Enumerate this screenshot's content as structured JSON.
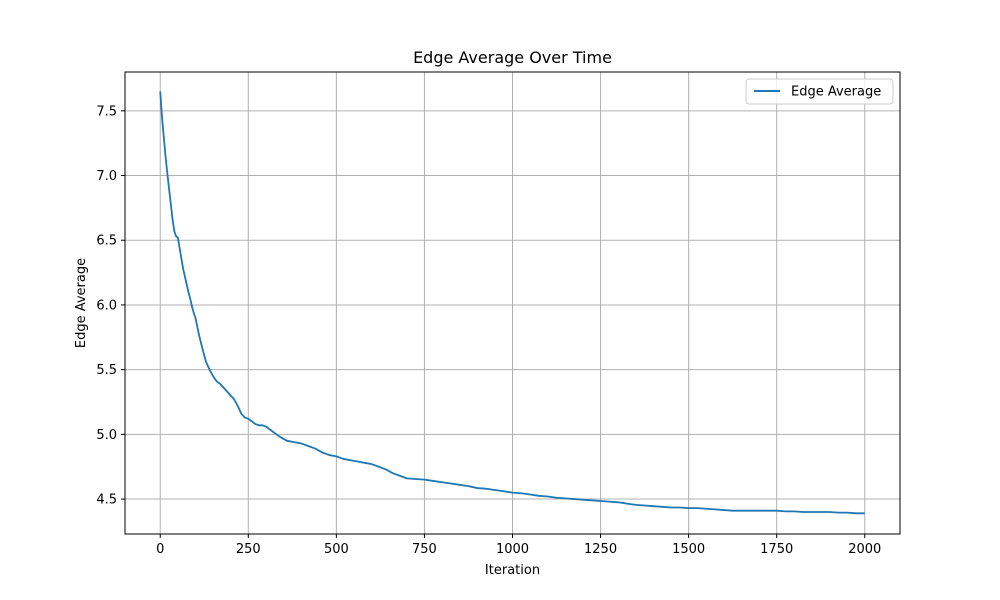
{
  "chart_data": {
    "type": "line",
    "title": "Edge Average Over Time",
    "xlabel": "Iteration",
    "ylabel": "Edge Average",
    "xlim": [
      -100,
      2100
    ],
    "ylim": [
      4.23,
      7.8
    ],
    "xticks": [
      0,
      250,
      500,
      750,
      1000,
      1250,
      1500,
      1750,
      2000
    ],
    "yticks": [
      4.5,
      5.0,
      5.5,
      6.0,
      6.5,
      7.0,
      7.5
    ],
    "xtick_labels": [
      "0",
      "250",
      "500",
      "750",
      "1000",
      "1250",
      "1500",
      "1750",
      "2000"
    ],
    "ytick_labels": [
      "4.5",
      "5.0",
      "5.5",
      "6.0",
      "6.5",
      "7.0",
      "7.5"
    ],
    "grid": true,
    "legend": {
      "position": "top-right"
    },
    "series": [
      {
        "name": "Edge Average",
        "color": "#1f77b4",
        "x": [
          0,
          5,
          10,
          15,
          20,
          25,
          30,
          35,
          40,
          45,
          50,
          55,
          60,
          65,
          70,
          75,
          80,
          85,
          90,
          95,
          100,
          110,
          120,
          130,
          140,
          150,
          160,
          170,
          180,
          190,
          200,
          210,
          220,
          230,
          240,
          250,
          260,
          270,
          280,
          290,
          300,
          320,
          340,
          360,
          380,
          400,
          420,
          440,
          460,
          480,
          500,
          520,
          540,
          560,
          580,
          600,
          620,
          640,
          660,
          680,
          700,
          725,
          750,
          775,
          800,
          825,
          850,
          875,
          900,
          925,
          950,
          975,
          1000,
          1025,
          1050,
          1075,
          1100,
          1125,
          1150,
          1175,
          1200,
          1225,
          1250,
          1275,
          1300,
          1325,
          1350,
          1375,
          1400,
          1425,
          1450,
          1475,
          1500,
          1525,
          1550,
          1575,
          1600,
          1625,
          1650,
          1675,
          1700,
          1725,
          1750,
          1775,
          1800,
          1825,
          1850,
          1875,
          1900,
          1925,
          1950,
          1975,
          2000
        ],
        "y": [
          7.65,
          7.45,
          7.3,
          7.15,
          7.02,
          6.9,
          6.78,
          6.66,
          6.57,
          6.53,
          6.52,
          6.44,
          6.36,
          6.28,
          6.22,
          6.16,
          6.1,
          6.05,
          5.99,
          5.94,
          5.9,
          5.77,
          5.66,
          5.56,
          5.5,
          5.45,
          5.41,
          5.39,
          5.36,
          5.33,
          5.3,
          5.27,
          5.22,
          5.16,
          5.13,
          5.12,
          5.1,
          5.08,
          5.07,
          5.07,
          5.06,
          5.02,
          4.98,
          4.95,
          4.94,
          4.93,
          4.91,
          4.89,
          4.86,
          4.84,
          4.83,
          4.81,
          4.8,
          4.79,
          4.78,
          4.77,
          4.75,
          4.73,
          4.7,
          4.68,
          4.66,
          4.655,
          4.65,
          4.64,
          4.63,
          4.62,
          4.61,
          4.6,
          4.585,
          4.58,
          4.57,
          4.56,
          4.55,
          4.545,
          4.535,
          4.525,
          4.52,
          4.51,
          4.505,
          4.5,
          4.495,
          4.49,
          4.485,
          4.48,
          4.475,
          4.465,
          4.455,
          4.45,
          4.445,
          4.44,
          4.435,
          4.435,
          4.43,
          4.43,
          4.425,
          4.42,
          4.415,
          4.41,
          4.41,
          4.41,
          4.41,
          4.41,
          4.41,
          4.405,
          4.405,
          4.4,
          4.4,
          4.4,
          4.4,
          4.395,
          4.395,
          4.39,
          4.39
        ]
      }
    ]
  }
}
